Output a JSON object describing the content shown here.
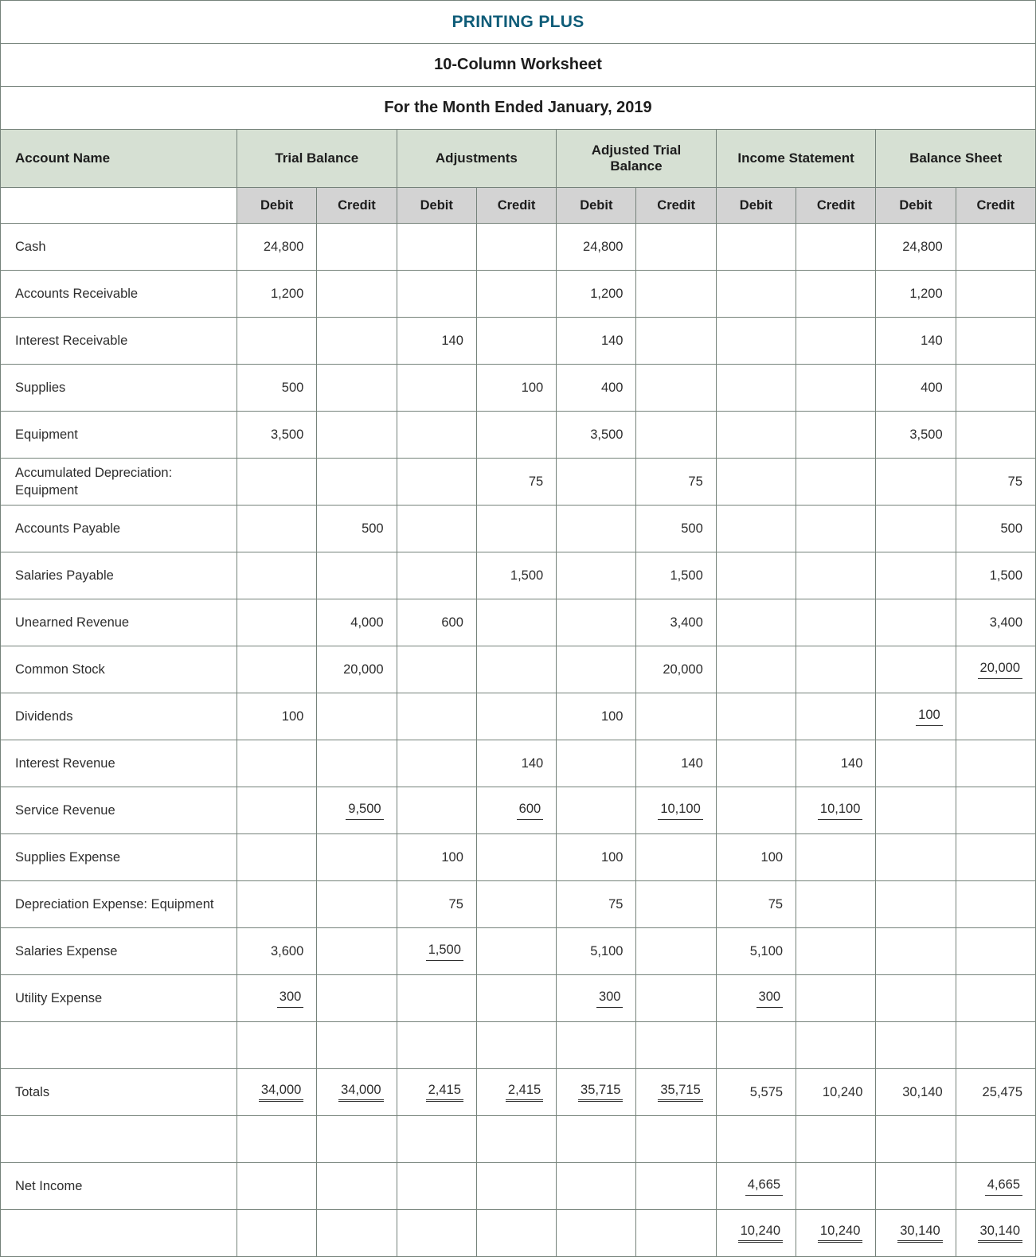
{
  "titles": {
    "company": "PRINTING PLUS",
    "worksheet": "10-Column Worksheet",
    "period": "For the Month Ended January, 2019"
  },
  "header": {
    "account_name": "Account Name",
    "groups": [
      "Trial Balance",
      "Adjustments",
      "Adjusted Trial Balance",
      "Income Statement",
      "Balance Sheet"
    ],
    "debit": "Debit",
    "credit": "Credit"
  },
  "colors": {
    "title_teal": "#0e5c78",
    "group_header_bg": "#d6e0d3",
    "debit_credit_bg": "#d3d3d3",
    "border": "#75827a",
    "text": "#2d2d2d"
  },
  "columns": [
    "tb_debit",
    "tb_credit",
    "adj_debit",
    "adj_credit",
    "atb_debit",
    "atb_credit",
    "is_debit",
    "is_credit",
    "bs_debit",
    "bs_credit"
  ],
  "rows": [
    {
      "name": "Cash",
      "cells": [
        {
          "v": "24,800"
        },
        null,
        null,
        null,
        {
          "v": "24,800"
        },
        null,
        null,
        null,
        {
          "v": "24,800"
        },
        null
      ]
    },
    {
      "name": "Accounts Receivable",
      "cells": [
        {
          "v": "1,200"
        },
        null,
        null,
        null,
        {
          "v": "1,200"
        },
        null,
        null,
        null,
        {
          "v": "1,200"
        },
        null
      ]
    },
    {
      "name": "Interest Receivable",
      "cells": [
        null,
        null,
        {
          "v": "140"
        },
        null,
        {
          "v": "140"
        },
        null,
        null,
        null,
        {
          "v": "140"
        },
        null
      ]
    },
    {
      "name": "Supplies",
      "cells": [
        {
          "v": "500"
        },
        null,
        null,
        {
          "v": "100"
        },
        {
          "v": "400"
        },
        null,
        null,
        null,
        {
          "v": "400"
        },
        null
      ]
    },
    {
      "name": "Equipment",
      "cells": [
        {
          "v": "3,500"
        },
        null,
        null,
        null,
        {
          "v": "3,500"
        },
        null,
        null,
        null,
        {
          "v": "3,500"
        },
        null
      ]
    },
    {
      "name": "Accumulated Depreciation: Equipment",
      "cells": [
        null,
        null,
        null,
        {
          "v": "75"
        },
        null,
        {
          "v": "75"
        },
        null,
        null,
        null,
        {
          "v": "75"
        }
      ]
    },
    {
      "name": "Accounts Payable",
      "cells": [
        null,
        {
          "v": "500"
        },
        null,
        null,
        null,
        {
          "v": "500"
        },
        null,
        null,
        null,
        {
          "v": "500"
        }
      ]
    },
    {
      "name": "Salaries Payable",
      "cells": [
        null,
        null,
        null,
        {
          "v": "1,500"
        },
        null,
        {
          "v": "1,500"
        },
        null,
        null,
        null,
        {
          "v": "1,500"
        }
      ]
    },
    {
      "name": "Unearned Revenue",
      "cells": [
        null,
        {
          "v": "4,000"
        },
        {
          "v": "600"
        },
        null,
        null,
        {
          "v": "3,400"
        },
        null,
        null,
        null,
        {
          "v": "3,400"
        }
      ]
    },
    {
      "name": "Common Stock",
      "cells": [
        null,
        {
          "v": "20,000"
        },
        null,
        null,
        null,
        {
          "v": "20,000"
        },
        null,
        null,
        null,
        {
          "v": "20,000",
          "u": 1
        }
      ]
    },
    {
      "name": "Dividends",
      "cells": [
        {
          "v": "100"
        },
        null,
        null,
        null,
        {
          "v": "100"
        },
        null,
        null,
        null,
        {
          "v": "100",
          "u": 1
        },
        null
      ]
    },
    {
      "name": "Interest Revenue",
      "cells": [
        null,
        null,
        null,
        {
          "v": "140"
        },
        null,
        {
          "v": "140"
        },
        null,
        {
          "v": "140"
        },
        null,
        null
      ]
    },
    {
      "name": "Service Revenue",
      "cells": [
        null,
        {
          "v": "9,500",
          "u": 1
        },
        null,
        {
          "v": "600",
          "u": 1
        },
        null,
        {
          "v": "10,100",
          "u": 1
        },
        null,
        {
          "v": "10,100",
          "u": 1
        },
        null,
        null
      ]
    },
    {
      "name": "Supplies Expense",
      "cells": [
        null,
        null,
        {
          "v": "100"
        },
        null,
        {
          "v": "100"
        },
        null,
        {
          "v": "100"
        },
        null,
        null,
        null
      ]
    },
    {
      "name": "Depreciation Expense: Equipment",
      "cells": [
        null,
        null,
        {
          "v": "75"
        },
        null,
        {
          "v": "75"
        },
        null,
        {
          "v": "75"
        },
        null,
        null,
        null
      ]
    },
    {
      "name": "Salaries Expense",
      "cells": [
        {
          "v": "3,600"
        },
        null,
        {
          "v": "1,500",
          "u": 1
        },
        null,
        {
          "v": "5,100"
        },
        null,
        {
          "v": "5,100"
        },
        null,
        null,
        null
      ]
    },
    {
      "name": "Utility Expense",
      "cells": [
        {
          "v": "300",
          "u": 1
        },
        null,
        null,
        null,
        {
          "v": "300",
          "u": 1
        },
        null,
        {
          "v": "300",
          "u": 1
        },
        null,
        null,
        null
      ]
    },
    {
      "name": "",
      "cells": [
        null,
        null,
        null,
        null,
        null,
        null,
        null,
        null,
        null,
        null
      ]
    },
    {
      "name": "Totals",
      "cells": [
        {
          "v": "34,000",
          "u": 2
        },
        {
          "v": "34,000",
          "u": 2
        },
        {
          "v": "2,415",
          "u": 2
        },
        {
          "v": "2,415",
          "u": 2
        },
        {
          "v": "35,715",
          "u": 2
        },
        {
          "v": "35,715",
          "u": 2
        },
        {
          "v": "5,575"
        },
        {
          "v": "10,240"
        },
        {
          "v": "30,140"
        },
        {
          "v": "25,475"
        }
      ]
    },
    {
      "name": "",
      "cells": [
        null,
        null,
        null,
        null,
        null,
        null,
        null,
        null,
        null,
        null
      ]
    },
    {
      "name": "Net Income",
      "cells": [
        null,
        null,
        null,
        null,
        null,
        null,
        {
          "v": "4,665",
          "u": 1
        },
        null,
        null,
        {
          "v": "4,665",
          "u": 1
        }
      ]
    },
    {
      "name": "",
      "cells": [
        null,
        null,
        null,
        null,
        null,
        null,
        {
          "v": "10,240",
          "u": 2
        },
        {
          "v": "10,240",
          "u": 2
        },
        {
          "v": "30,140",
          "u": 2
        },
        {
          "v": "30,140",
          "u": 2
        }
      ]
    }
  ]
}
